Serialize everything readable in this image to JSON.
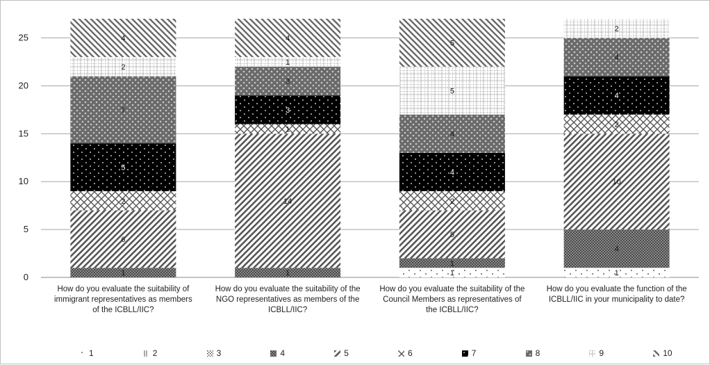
{
  "chart_data": {
    "type": "bar",
    "stacked": true,
    "categories": [
      "How do you evaluate the suitability of immigrant representatives as members of the ICBLL/IIC?",
      "How do you evaluate the suitability of the NGO representatives as members of the ICBLL/IIC?",
      "How do you evaluate the suitability of the Council Members as representatives of the ICBLL/IIC?",
      "How do you evaluate the function of the ICBLL/IIC in your municipality to date?"
    ],
    "series": [
      {
        "name": "1",
        "values": [
          0,
          0,
          1,
          1
        ]
      },
      {
        "name": "2",
        "values": [
          0,
          0,
          0,
          0
        ]
      },
      {
        "name": "3",
        "values": [
          0,
          0,
          0,
          0
        ]
      },
      {
        "name": "4",
        "values": [
          1,
          1,
          1,
          4
        ]
      },
      {
        "name": "5",
        "values": [
          6,
          14,
          5,
          10
        ]
      },
      {
        "name": "6",
        "values": [
          2,
          1,
          2,
          2
        ]
      },
      {
        "name": "7",
        "values": [
          5,
          3,
          4,
          4
        ]
      },
      {
        "name": "8",
        "values": [
          7,
          3,
          4,
          4
        ]
      },
      {
        "name": "9",
        "values": [
          2,
          1,
          5,
          2
        ]
      },
      {
        "name": "10",
        "values": [
          4,
          4,
          5,
          0
        ]
      }
    ],
    "yticks": [
      0,
      5,
      10,
      15,
      20,
      25
    ],
    "ylim": [
      0,
      27
    ],
    "grid": true,
    "legend_position": "bottom"
  }
}
